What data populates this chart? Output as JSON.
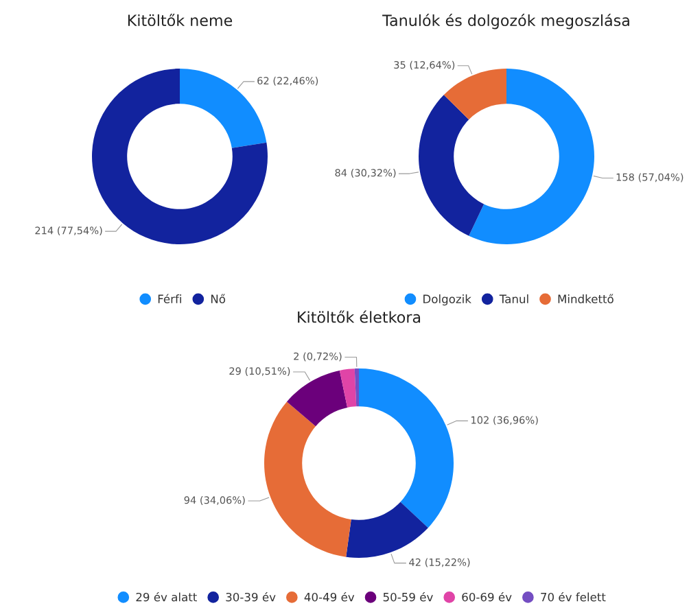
{
  "chart_data": [
    {
      "type": "donut",
      "title": "Kitöltők neme",
      "categories": [
        "Férfi",
        "Nő"
      ],
      "values": [
        62,
        214
      ],
      "colors": [
        "#118dff",
        "#12239e"
      ],
      "value_labels": [
        "62 (22,46%)",
        "214 (77,54%)"
      ],
      "legend": "bottom"
    },
    {
      "type": "donut",
      "title": "Tanulók és dolgozók megoszlása",
      "categories": [
        "Dolgozik",
        "Tanul",
        "Mindkettő"
      ],
      "values": [
        158,
        84,
        35
      ],
      "colors": [
        "#118dff",
        "#12239e",
        "#e66c37"
      ],
      "value_labels": [
        "158 (57,04%)",
        "84 (30,32%)",
        "35 (12,64%)"
      ],
      "legend": "bottom"
    },
    {
      "type": "donut",
      "title": "Kitöltők életkora",
      "categories": [
        "29 év alatt",
        "30-39 év",
        "40-49 év",
        "50-59 év",
        "60-69 év",
        "70 év felett"
      ],
      "values": [
        102,
        42,
        94,
        29,
        7,
        2
      ],
      "colors": [
        "#118dff",
        "#12239e",
        "#e66c37",
        "#6b007b",
        "#e044a7",
        "#744ec2"
      ],
      "value_labels": [
        "102 (36,96%)",
        "42 (15,22%)",
        "94 (34,06%)",
        "29 (10,51%)",
        null,
        "2 (0,72%)"
      ],
      "legend": "bottom"
    }
  ]
}
